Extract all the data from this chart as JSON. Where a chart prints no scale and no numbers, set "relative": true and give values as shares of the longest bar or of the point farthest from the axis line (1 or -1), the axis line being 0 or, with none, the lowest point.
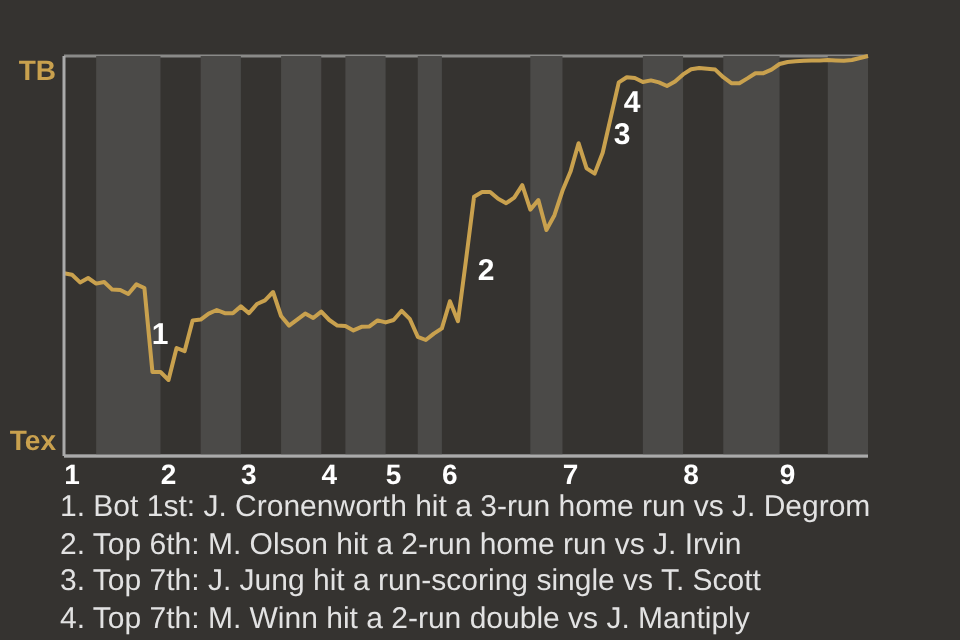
{
  "chart_data": {
    "type": "line",
    "relative": true,
    "categories": [
      null,
      "1",
      null,
      null,
      null,
      null,
      null,
      null,
      null,
      null,
      null,
      null,
      null,
      "2",
      null,
      null,
      null,
      null,
      null,
      null,
      null,
      null,
      null,
      "3",
      null,
      null,
      null,
      null,
      null,
      null,
      null,
      null,
      null,
      "4",
      null,
      null,
      null,
      null,
      null,
      null,
      null,
      "5",
      null,
      null,
      null,
      null,
      null,
      null,
      "6",
      null,
      null,
      null,
      null,
      null,
      null,
      null,
      null,
      null,
      null,
      null,
      null,
      null,
      null,
      "7",
      null,
      null,
      null,
      null,
      null,
      null,
      null,
      null,
      null,
      null,
      null,
      null,
      null,
      null,
      "8",
      null,
      null,
      null,
      null,
      null,
      null,
      null,
      null,
      null,
      null,
      null,
      "9",
      null,
      null,
      null,
      null,
      null,
      null,
      null,
      null,
      null,
      null
    ],
    "series": [
      {
        "color": "#c9a14e",
        "values": [
          0.457,
          0.453,
          0.434,
          0.445,
          0.431,
          0.435,
          0.416,
          0.415,
          0.405,
          0.429,
          0.42,
          0.21,
          0.21,
          0.19,
          0.27,
          0.262,
          0.339,
          0.341,
          0.356,
          0.365,
          0.357,
          0.357,
          0.374,
          0.357,
          0.38,
          0.389,
          0.41,
          0.35,
          0.326,
          0.341,
          0.356,
          0.345,
          0.361,
          0.34,
          0.326,
          0.325,
          0.314,
          0.323,
          0.324,
          0.339,
          0.334,
          0.34,
          0.363,
          0.343,
          0.298,
          0.29,
          0.306,
          0.319,
          0.387,
          0.337,
          0.49,
          0.648,
          0.66,
          0.66,
          0.643,
          0.632,
          0.646,
          0.677,
          0.616,
          0.64,
          0.565,
          0.602,
          0.663,
          0.711,
          0.782,
          0.719,
          0.706,
          0.758,
          0.846,
          0.934,
          0.947,
          0.945,
          0.935,
          0.939,
          0.934,
          0.925,
          0.936,
          0.954,
          0.967,
          0.97,
          0.968,
          0.966,
          0.947,
          0.932,
          0.932,
          0.944,
          0.957,
          0.957,
          0.966,
          0.98,
          0.985,
          0.987,
          0.988,
          0.989,
          0.989,
          0.99,
          0.989,
          0.988,
          0.99,
          0.995,
          1
        ]
      }
    ],
    "grid": "y",
    "annotations": [
      "TB",
      "Tex",
      "1",
      "2",
      "3",
      "4",
      "1. Bot 1st: J. Cronenworth hit a 3-run home run vs J. Degrom",
      "2. Top 6th: M. Olson hit a 2-run home run vs J. Irvin",
      "3. Top 7th: J. Jung hit a run-scoring single vs T. Scott",
      "4. Top 7th: M. Winn hit a 2-run double vs J. Mantiply"
    ]
  }
}
